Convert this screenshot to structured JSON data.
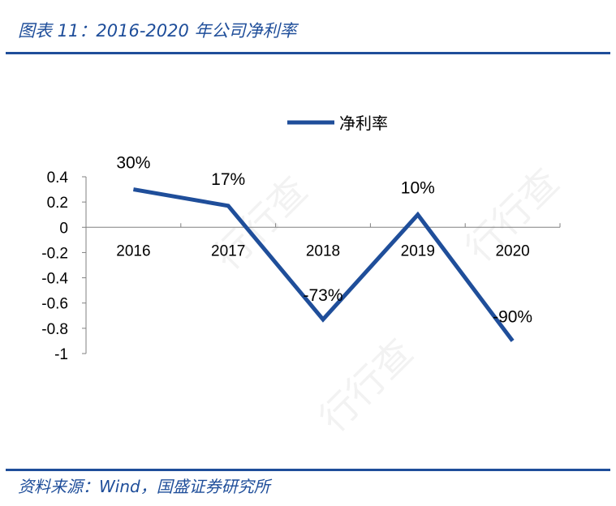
{
  "header": {
    "title": "图表 11：2016-2020 年公司净利率"
  },
  "footer": {
    "source": "资料来源：Wind，国盛证券研究所"
  },
  "colors": {
    "accent": "#1f4e9a",
    "series": "#1f4e9a"
  },
  "chart_data": {
    "type": "line",
    "categories": [
      "2016",
      "2017",
      "2018",
      "2019",
      "2020"
    ],
    "series": [
      {
        "name": "净利率",
        "values": [
          0.3,
          0.17,
          -0.73,
          0.1,
          -0.9
        ]
      }
    ],
    "data_labels": [
      "30%",
      "17%",
      "-73%",
      "10%",
      "-90%"
    ],
    "yticks": [
      0.4,
      0.2,
      0,
      -0.2,
      -0.4,
      -0.6,
      -0.8,
      -1
    ],
    "ytick_labels": [
      "0.4",
      "0.2",
      "0",
      "-0.2",
      "-0.4",
      "-0.6",
      "-0.8",
      "-1"
    ],
    "ylim": [
      -1,
      0.4
    ],
    "legend_position": "top-center",
    "grid": false
  }
}
